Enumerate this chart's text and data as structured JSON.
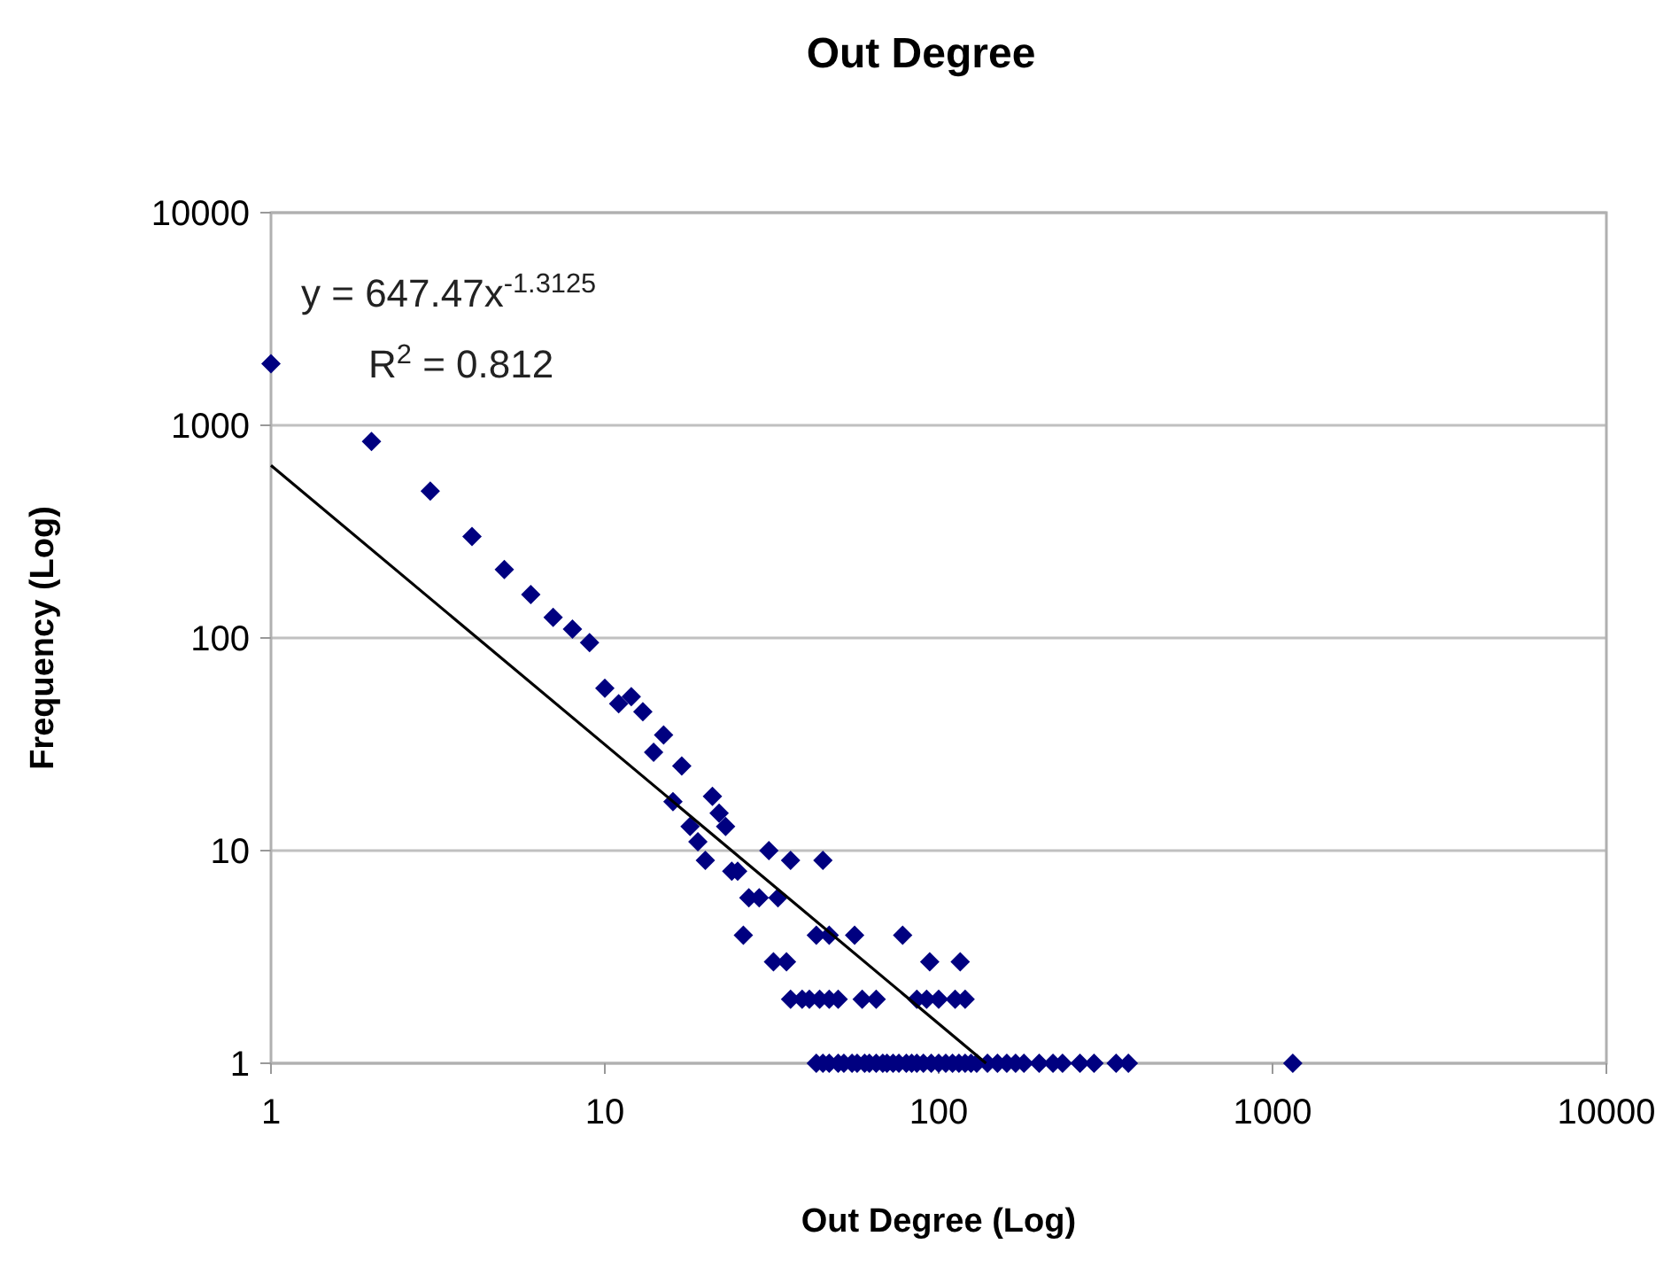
{
  "chart_data": {
    "type": "scatter",
    "title": "Out Degree",
    "xlabel": "Out Degree (Log)",
    "ylabel": "Frequency (Log)",
    "log": "xy",
    "grid": "y",
    "marker": "diamond",
    "xlim": [
      1,
      10000
    ],
    "xticks": [
      1,
      10,
      100,
      1000,
      10000
    ],
    "ylim": [
      1,
      10000
    ],
    "yticks": [
      1,
      10,
      100,
      1000,
      10000
    ],
    "annotations": [
      "y = 647.47x$^{-1.3125}$",
      "R$^{2}$ = 0.812"
    ],
    "series": [
      {
        "color": "#000080",
        "x": [
          1,
          2,
          3,
          4,
          5,
          6,
          7,
          8,
          9,
          10,
          11,
          12,
          13,
          14,
          15,
          16,
          17,
          18,
          19,
          20,
          21,
          22,
          23,
          24,
          25,
          26,
          27,
          29,
          31,
          33,
          36,
          45,
          32,
          35,
          43,
          47,
          56,
          78,
          94,
          116,
          36,
          39,
          41,
          44,
          47,
          50,
          59,
          65,
          86,
          92,
          100,
          112,
          120,
          43,
          45,
          47,
          50,
          52,
          55,
          57,
          60,
          62,
          65,
          68,
          70,
          73,
          76,
          80,
          83,
          86,
          90,
          95,
          100,
          105,
          110,
          115,
          120,
          125,
          130,
          140,
          150,
          160,
          170,
          180,
          200,
          220,
          235,
          265,
          292,
          340,
          370,
          1150
        ],
        "values": [
          1950,
          840,
          490,
          300,
          210,
          160,
          125,
          110,
          95,
          58,
          49,
          53,
          45,
          29,
          35,
          17,
          25,
          13,
          11,
          9,
          18,
          15,
          13,
          8,
          8,
          4,
          6,
          6,
          10,
          6,
          9,
          9,
          3,
          3,
          4,
          4,
          4,
          4,
          3,
          3,
          2,
          2,
          2,
          2,
          2,
          2,
          2,
          2,
          2,
          2,
          2,
          2,
          2,
          1,
          1,
          1,
          1,
          1,
          1,
          1,
          1,
          1,
          1,
          1,
          1,
          1,
          1,
          1,
          1,
          1,
          1,
          1,
          1,
          1,
          1,
          1,
          1,
          1,
          1,
          1,
          1,
          1,
          1,
          1,
          1,
          1,
          1,
          1,
          1,
          1,
          1,
          1
        ]
      },
      {
        "type": "line",
        "color": "#000000",
        "marker": "none",
        "x": [
          1,
          138.6
        ],
        "values": [
          647.47,
          1
        ]
      }
    ]
  }
}
